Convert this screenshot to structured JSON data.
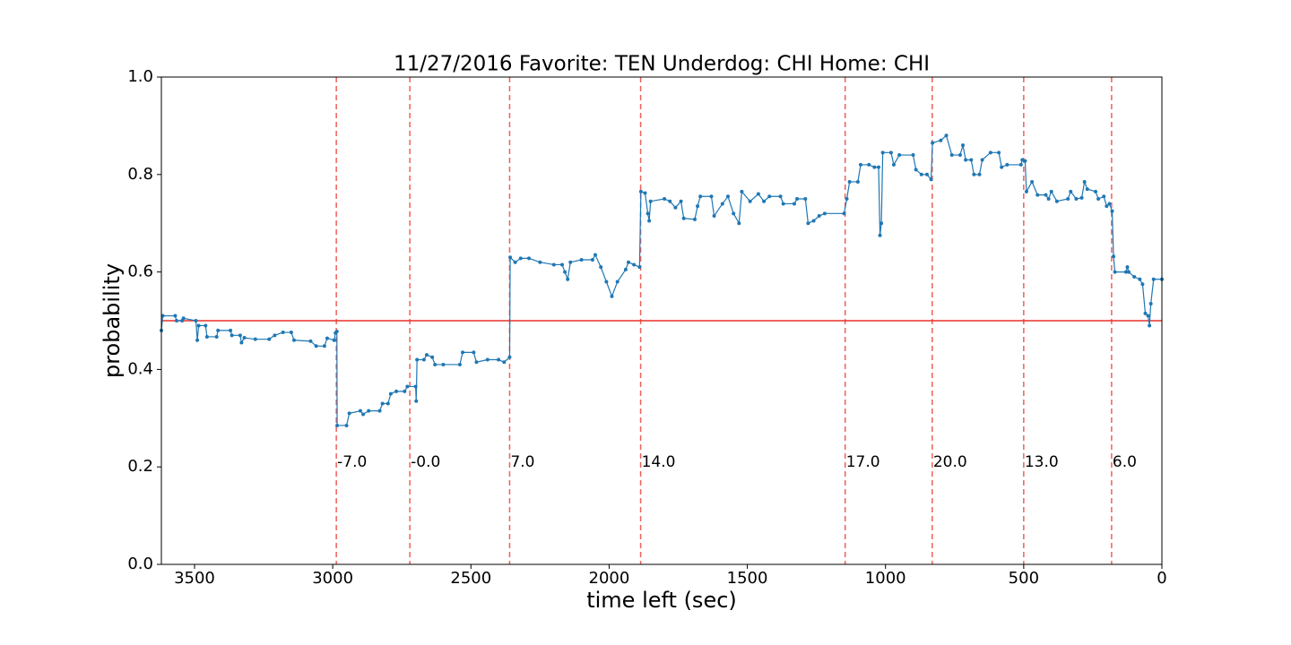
{
  "chart_data": {
    "type": "line",
    "title": "11/27/2016 Favorite: TEN Underdog: CHI Home: CHI",
    "x_label": "time left (sec)",
    "y_label": "probability",
    "xlim": [
      3620,
      0
    ],
    "ylim": [
      0,
      1
    ],
    "xticks": [
      3500,
      3000,
      2500,
      2000,
      1500,
      1000,
      500,
      0
    ],
    "yticks": [
      {
        "value": 0,
        "label": "0.0"
      },
      0.2,
      0.4,
      0.6,
      0.8,
      {
        "value": 1,
        "label": "1.0"
      }
    ],
    "reference_line": {
      "value": 0.5,
      "color": "#e8302a"
    },
    "annotation_color": "#f0605a",
    "annotations": [
      {
        "x": 2987,
        "label": "-7.0"
      },
      {
        "x": 2721,
        "label": "-0.0"
      },
      {
        "x": 2360,
        "label": "7.0"
      },
      {
        "x": 1886,
        "label": "14.0"
      },
      {
        "x": 1146,
        "label": "17.0"
      },
      {
        "x": 831,
        "label": "20.0"
      },
      {
        "x": 500,
        "label": "13.0"
      },
      {
        "x": 182,
        "label": "6.0"
      }
    ],
    "series": [
      {
        "color": "#1f77b4",
        "x": [
          3620,
          3615,
          3570,
          3565,
          3545,
          3540,
          3495,
          3490,
          3485,
          3460,
          3455,
          3420,
          3415,
          3370,
          3365,
          3335,
          3330,
          3320,
          3280,
          3230,
          3210,
          3180,
          3150,
          3140,
          3080,
          3060,
          3030,
          3020,
          2995,
          2990,
          2985,
          2984,
          2950,
          2940,
          2900,
          2890,
          2870,
          2830,
          2820,
          2800,
          2790,
          2770,
          2740,
          2730,
          2700,
          2698,
          2695,
          2670,
          2660,
          2640,
          2630,
          2600,
          2540,
          2530,
          2490,
          2480,
          2440,
          2400,
          2380,
          2360,
          2358,
          2340,
          2320,
          2290,
          2250,
          2200,
          2170,
          2160,
          2150,
          2140,
          2100,
          2060,
          2050,
          2030,
          2010,
          1990,
          1970,
          1940,
          1930,
          1910,
          1890,
          1885,
          1870,
          1860,
          1855,
          1850,
          1800,
          1780,
          1760,
          1740,
          1730,
          1690,
          1680,
          1670,
          1630,
          1620,
          1590,
          1570,
          1550,
          1530,
          1520,
          1490,
          1460,
          1440,
          1420,
          1380,
          1370,
          1330,
          1320,
          1290,
          1280,
          1260,
          1240,
          1220,
          1150,
          1140,
          1130,
          1100,
          1090,
          1060,
          1040,
          1025,
          1020,
          1015,
          1010,
          980,
          970,
          950,
          900,
          890,
          870,
          850,
          835,
          830,
          800,
          780,
          760,
          730,
          720,
          710,
          690,
          680,
          660,
          650,
          620,
          590,
          580,
          560,
          510,
          505,
          495,
          490,
          470,
          450,
          420,
          410,
          400,
          380,
          340,
          330,
          310,
          290,
          280,
          270,
          240,
          230,
          210,
          200,
          190,
          180,
          175,
          170,
          130,
          125,
          120,
          100,
          80,
          70,
          60,
          50,
          45,
          40,
          30,
          0
        ],
        "values": [
          0.48,
          0.51,
          0.51,
          0.5,
          0.5,
          0.505,
          0.5,
          0.46,
          0.49,
          0.49,
          0.467,
          0.467,
          0.48,
          0.48,
          0.47,
          0.47,
          0.455,
          0.465,
          0.462,
          0.462,
          0.47,
          0.476,
          0.476,
          0.46,
          0.458,
          0.448,
          0.448,
          0.464,
          0.46,
          0.475,
          0.478,
          0.285,
          0.285,
          0.31,
          0.315,
          0.308,
          0.315,
          0.315,
          0.33,
          0.33,
          0.35,
          0.355,
          0.355,
          0.365,
          0.365,
          0.335,
          0.42,
          0.42,
          0.43,
          0.425,
          0.41,
          0.41,
          0.41,
          0.435,
          0.435,
          0.415,
          0.42,
          0.42,
          0.415,
          0.425,
          0.63,
          0.62,
          0.628,
          0.628,
          0.62,
          0.615,
          0.615,
          0.6,
          0.585,
          0.62,
          0.625,
          0.625,
          0.635,
          0.61,
          0.58,
          0.55,
          0.58,
          0.605,
          0.62,
          0.615,
          0.61,
          0.765,
          0.762,
          0.72,
          0.705,
          0.745,
          0.75,
          0.745,
          0.732,
          0.745,
          0.71,
          0.708,
          0.735,
          0.755,
          0.755,
          0.715,
          0.74,
          0.755,
          0.72,
          0.7,
          0.765,
          0.745,
          0.76,
          0.745,
          0.755,
          0.755,
          0.74,
          0.74,
          0.75,
          0.75,
          0.7,
          0.705,
          0.715,
          0.72,
          0.72,
          0.75,
          0.785,
          0.785,
          0.82,
          0.82,
          0.815,
          0.815,
          0.675,
          0.7,
          0.845,
          0.845,
          0.82,
          0.84,
          0.84,
          0.81,
          0.8,
          0.8,
          0.79,
          0.865,
          0.87,
          0.88,
          0.84,
          0.84,
          0.86,
          0.83,
          0.83,
          0.8,
          0.8,
          0.83,
          0.845,
          0.845,
          0.815,
          0.82,
          0.82,
          0.83,
          0.828,
          0.765,
          0.785,
          0.758,
          0.758,
          0.75,
          0.765,
          0.745,
          0.75,
          0.765,
          0.75,
          0.752,
          0.785,
          0.77,
          0.765,
          0.75,
          0.755,
          0.735,
          0.74,
          0.725,
          0.632,
          0.6,
          0.6,
          0.61,
          0.6,
          0.59,
          0.585,
          0.575,
          0.515,
          0.51,
          0.49,
          0.535,
          0.585,
          0.585
        ]
      }
    ]
  }
}
